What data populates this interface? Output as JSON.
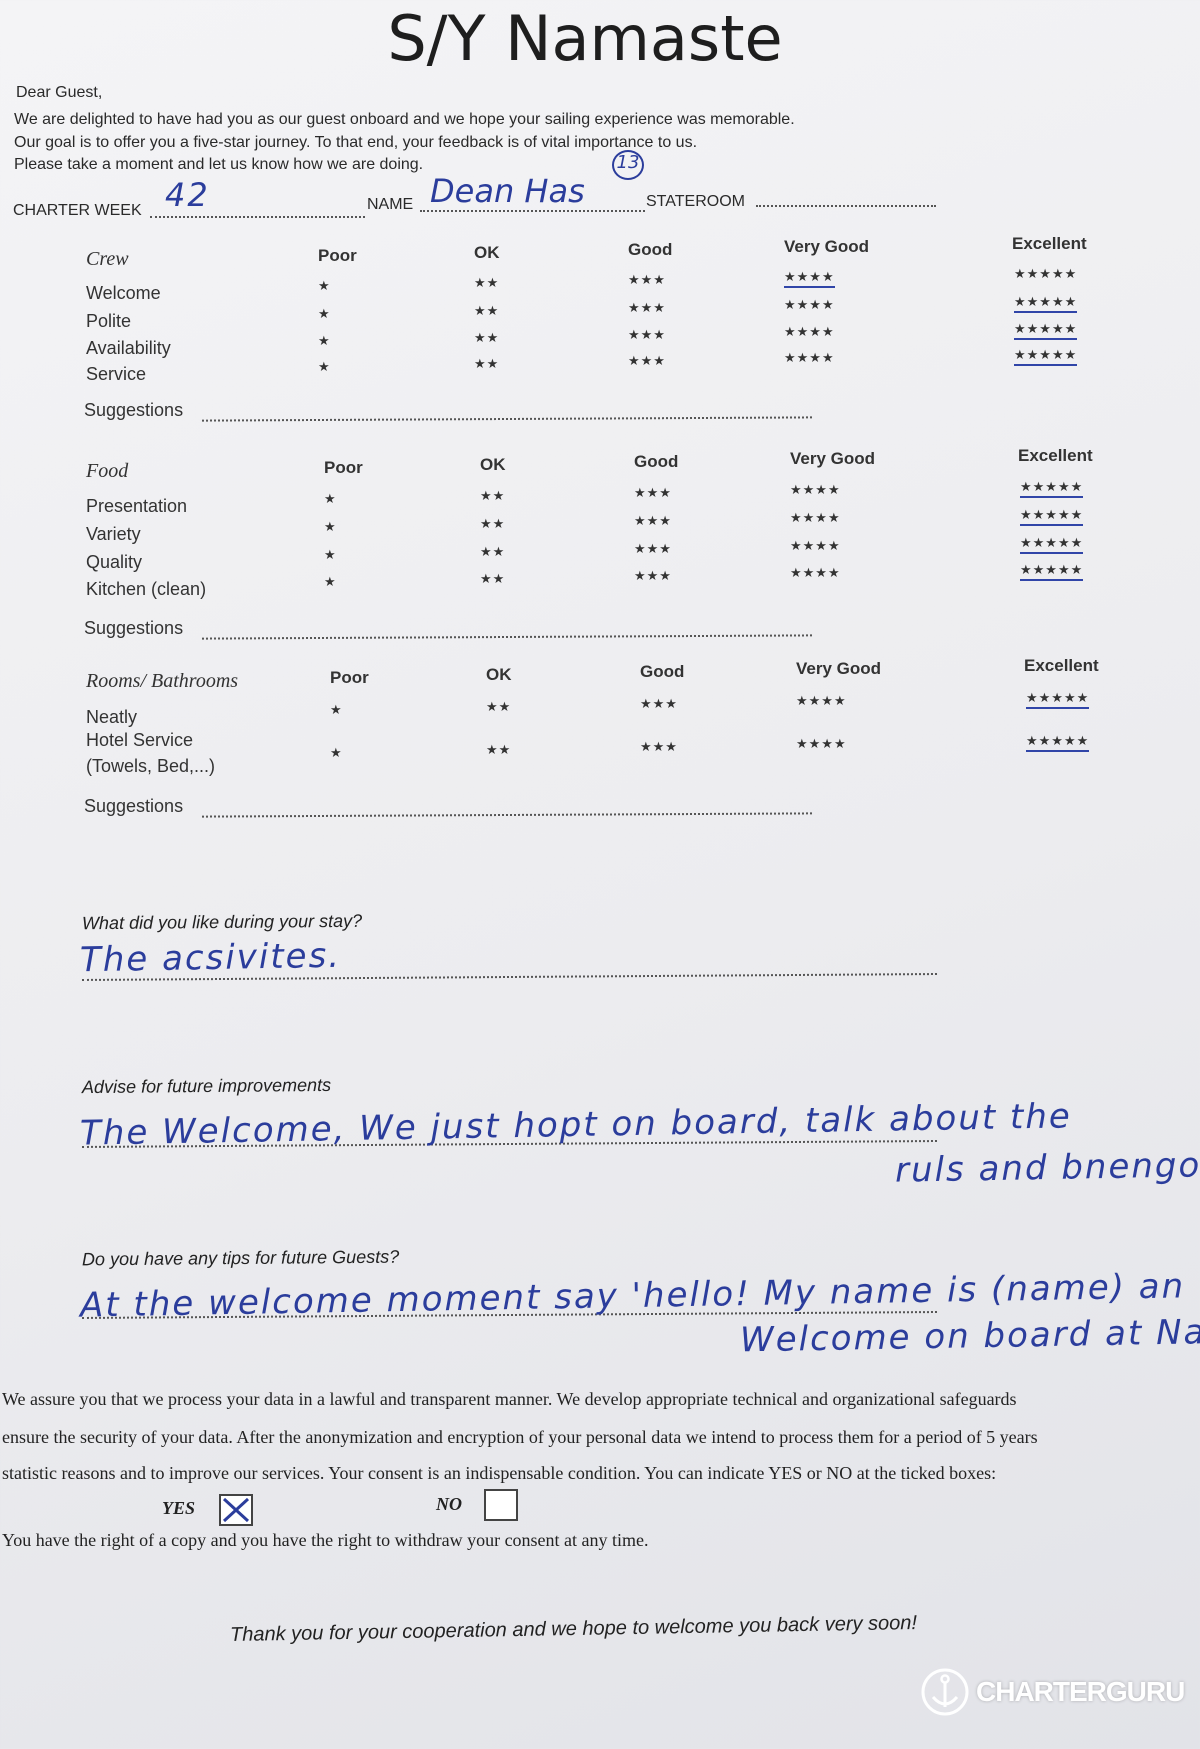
{
  "title": "S/Y Namaste",
  "greeting": "Dear Guest,",
  "intro": [
    "We are delighted to have had you as our guest onboard and we hope your sailing experience was memorable.",
    "Our goal is to offer you a five-star journey. To that end, your feedback is of vital importance to us.",
    "Please take a moment and let us know how we are doing."
  ],
  "fields": {
    "charter_week_label": "CHARTER WEEK",
    "charter_week_value": "42",
    "name_label": "NAME",
    "name_value": "Dean Has",
    "name_annotation": "13",
    "stateroom_label": "STATEROOM",
    "stateroom_value": ""
  },
  "rating_columns": [
    {
      "label": "Poor",
      "stars": "★"
    },
    {
      "label": "OK",
      "stars": "★★"
    },
    {
      "label": "Good",
      "stars": "★★★"
    },
    {
      "label": "Very Good",
      "stars": "★★★★"
    },
    {
      "label": "Excellent",
      "stars": "★★★★★"
    }
  ],
  "sections": [
    {
      "title": "Crew",
      "suggestions_label": "Suggestions",
      "suggestions_value": "",
      "rows": [
        {
          "label": "Welcome",
          "selected": "Very Good"
        },
        {
          "label": "Polite",
          "selected": "Excellent"
        },
        {
          "label": "Availability",
          "selected": "Excellent"
        },
        {
          "label": "Service",
          "selected": "Excellent"
        }
      ]
    },
    {
      "title": "Food",
      "suggestions_label": "Suggestions",
      "suggestions_value": "",
      "rows": [
        {
          "label": "Presentation",
          "selected": "Excellent"
        },
        {
          "label": "Variety",
          "selected": "Excellent"
        },
        {
          "label": "Quality",
          "selected": "Excellent"
        },
        {
          "label": "Kitchen (clean)",
          "selected": "Excellent"
        }
      ]
    },
    {
      "title": "Rooms/ Bathrooms",
      "suggestions_label": "Suggestions",
      "suggestions_value": "",
      "rows": [
        {
          "label": "Neatly",
          "selected": "Excellent"
        },
        {
          "label": "Hotel Service\n(Towels, Bed,...)",
          "selected": "Excellent"
        }
      ]
    }
  ],
  "questions": [
    {
      "label": "What did you like during your stay?",
      "answer": [
        "The acsivites."
      ]
    },
    {
      "label": "Advise for future improvements",
      "answer": [
        "The Welcome, We just hopt on board, talk about the",
        "ruls and bnengo"
      ]
    },
    {
      "label": "Do you have any tips for future Guests?",
      "answer": [
        "At the welcome moment say 'hello! My name is (name) an",
        "Welcome on board at Nam"
      ]
    }
  ],
  "consent": {
    "lines": [
      "We assure you that we process your data in a lawful and transparent manner. We develop appropriate technical and organizational safeguards",
      "ensure the security of your data. After the anonymization and encryption of your personal data we intend to process them for a period of 5 years",
      "statistic reasons and to improve our services. Your consent is an indispensable condition. You can indicate YES or NO at the ticked boxes:"
    ],
    "yes_label": "YES",
    "no_label": "NO",
    "yes_checked": true,
    "no_checked": false,
    "rights": "You have the right of a copy and you have the right to withdraw your consent at any time."
  },
  "closing": "Thank you for your cooperation and we hope to welcome you back very soon!",
  "watermark": {
    "text": "CHARTERGURU",
    "icon": "anchor-icon"
  },
  "colors": {
    "ink": "#2b3d9c",
    "paper": "#f0f0f3"
  }
}
